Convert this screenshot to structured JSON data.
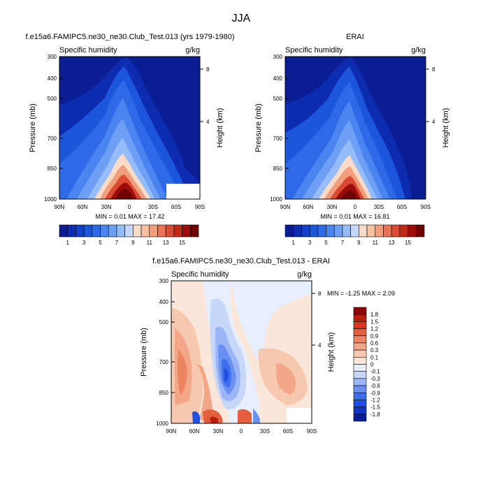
{
  "figure": {
    "title": "JJA"
  },
  "chart_data": [
    {
      "type": "heatmap",
      "title": "f.e15a6.FAMIPC5.ne30_ne30.Club_Test.013 (yrs 1979-1980)",
      "variable": "Specific humidity",
      "units": "g/kg",
      "xlabel": "",
      "ylabel": "Pressure (mb)",
      "ylabel_right": "Height (km)",
      "x_ticks": [
        "90N",
        "60N",
        "30N",
        "0",
        "30S",
        "60S",
        "90S"
      ],
      "y_ticks": [
        "300",
        "400",
        "500",
        "700",
        "850",
        "1000"
      ],
      "y_right_ticks": [
        "8",
        "4"
      ],
      "stats": "MIN =  0.01  MAX = 17.42",
      "colorbar_labels": [
        "1",
        "3",
        "5",
        "7",
        "9",
        "11",
        "13",
        "15"
      ],
      "ylim": [
        1000,
        300
      ],
      "xlim": [
        90,
        -90
      ]
    },
    {
      "type": "heatmap",
      "title": "ERAI",
      "variable": "Specific humidity",
      "units": "g/kg",
      "xlabel": "",
      "ylabel": "Pressure (mb)",
      "ylabel_right": "Height (km)",
      "x_ticks": [
        "90N",
        "60N",
        "30N",
        "0",
        "30S",
        "60S",
        "90S"
      ],
      "y_ticks": [
        "300",
        "400",
        "500",
        "700",
        "850",
        "1000"
      ],
      "y_right_ticks": [
        "8",
        "4"
      ],
      "stats": "MIN =  0.01  MAX = 16.81",
      "colorbar_labels": [
        "1",
        "3",
        "5",
        "7",
        "9",
        "11",
        "13",
        "15"
      ],
      "ylim": [
        1000,
        300
      ],
      "xlim": [
        90,
        -90
      ]
    },
    {
      "type": "heatmap",
      "title": "f.e15a6.FAMIPC5.ne30_ne30.Club_Test.013 - ERAI",
      "variable": "Specific humidity",
      "units": "g/kg",
      "xlabel": "",
      "ylabel": "Pressure (mb)",
      "ylabel_right": "Height (km)",
      "x_ticks": [
        "90N",
        "60N",
        "30N",
        "0",
        "30S",
        "60S",
        "90S"
      ],
      "y_ticks": [
        "300",
        "400",
        "500",
        "700",
        "850",
        "1000"
      ],
      "y_right_ticks": [
        "8",
        "4"
      ],
      "stats": "MIN = -1.25  MAX =  2.09",
      "colorbar_labels": [
        "1.8",
        "1.5",
        "1.2",
        "0.9",
        "0.6",
        "0.3",
        "0.1",
        "0",
        "-0.1",
        "-0.3",
        "-0.6",
        "-0.9",
        "-1.2",
        "-1.5",
        "-1.8"
      ],
      "ylim": [
        1000,
        300
      ],
      "xlim": [
        90,
        -90
      ]
    }
  ],
  "colors": {
    "abs_scale": [
      "#0a1d93",
      "#0d2cb0",
      "#1240c8",
      "#1c56da",
      "#2e6ae8",
      "#4a84ef",
      "#6d9ff4",
      "#97bdf8",
      "#c3d8fb",
      "#f8dcc8",
      "#f6c0a2",
      "#f19e7c",
      "#e97356",
      "#db4a33",
      "#c32818",
      "#9a0d0a",
      "#6e0303"
    ],
    "diff_scale": [
      "#0a1d93",
      "#1432c4",
      "#2150e0",
      "#3f6fee",
      "#6a91f2",
      "#9bb6f6",
      "#c6d7f9",
      "#e7eefc",
      "#fbe6da",
      "#f6c8ad",
      "#f2a888",
      "#ed8562",
      "#e45f3e",
      "#d63a21",
      "#bb1c0c",
      "#8f0606"
    ]
  }
}
